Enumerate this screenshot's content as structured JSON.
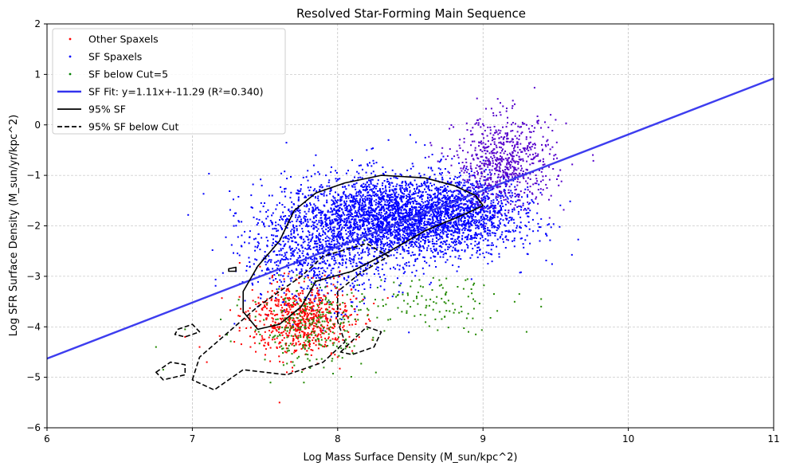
{
  "chart_data": {
    "type": "scatter",
    "title": "Resolved Star-Forming Main Sequence",
    "xlabel": "Log Mass Surface Density (M_sun/kpc^2)",
    "ylabel": "Log SFR Surface Density (M_sun/yr/kpc^2)",
    "xlim": [
      6,
      11
    ],
    "ylim": [
      -6,
      2
    ],
    "xticks": [
      6,
      7,
      8,
      9,
      10,
      11
    ],
    "yticks": [
      -6,
      -5,
      -4,
      -3,
      -2,
      -1,
      0,
      1,
      2
    ],
    "grid": true,
    "legend_position": "upper-left",
    "legend": [
      {
        "label": "Other Spaxels",
        "kind": "marker",
        "color": "#ff0000"
      },
      {
        "label": "SF Spaxels",
        "kind": "marker",
        "color": "#0000ff"
      },
      {
        "label": "SF below Cut=5",
        "kind": "marker",
        "color": "#008000"
      },
      {
        "label": "SF Fit: y=1.11x+-11.29 (R²=0.340)",
        "kind": "line",
        "color": "#3333ee"
      },
      {
        "label": "95% SF",
        "kind": "line",
        "color": "#000000"
      },
      {
        "label": "95% SF below Cut",
        "kind": "dashed",
        "color": "#000000"
      }
    ],
    "fit": {
      "slope": 1.11,
      "intercept": -11.29,
      "r2": 0.34,
      "color": "#3333ee"
    },
    "series": [
      {
        "name": "SF Spaxels",
        "color": "#0000ff",
        "clusters": [
          {
            "cx": 8.4,
            "cy": -1.85,
            "sx": 0.38,
            "sy": 0.42,
            "n": 3200
          },
          {
            "cx": 7.85,
            "cy": -2.6,
            "sx": 0.25,
            "sy": 0.5,
            "n": 700
          },
          {
            "cx": 8.9,
            "cy": -1.65,
            "sx": 0.2,
            "sy": 0.35,
            "n": 500
          }
        ],
        "points": [
          [
            7.55,
            -1.4
          ],
          [
            8.2,
            -0.5
          ],
          [
            8.35,
            -0.3
          ],
          [
            7.85,
            -0.6
          ],
          [
            8.5,
            -0.2
          ],
          [
            8.6,
            -0.4
          ],
          [
            7.5,
            -2.6
          ],
          [
            7.45,
            -3.6
          ],
          [
            7.3,
            -2.9
          ],
          [
            8.1,
            -0.7
          ]
        ]
      },
      {
        "name": "SF Spaxels (high density)",
        "color": "#5500cc",
        "clusters": [
          {
            "cx": 9.15,
            "cy": -0.75,
            "sx": 0.17,
            "sy": 0.45,
            "n": 700
          }
        ],
        "points": [
          [
            9.5,
            0.1
          ],
          [
            9.45,
            -0.05
          ],
          [
            9.05,
            -0.05
          ],
          [
            9.3,
            0.0
          ]
        ]
      },
      {
        "name": "Other Spaxels",
        "color": "#ff0000",
        "clusters": [
          {
            "cx": 7.75,
            "cy": -3.85,
            "sx": 0.18,
            "sy": 0.35,
            "n": 700
          }
        ],
        "points": [
          [
            7.1,
            -4.7
          ],
          [
            6.95,
            -4.2
          ],
          [
            7.05,
            -4.4
          ],
          [
            7.6,
            -5.5
          ],
          [
            7.65,
            -4.9
          ],
          [
            7.4,
            -4.4
          ],
          [
            8.0,
            -4.6
          ]
        ]
      },
      {
        "name": "SF below Cut=5",
        "color": "#228800",
        "clusters": [
          {
            "cx": 7.8,
            "cy": -4.0,
            "sx": 0.2,
            "sy": 0.4,
            "n": 260
          },
          {
            "cx": 8.6,
            "cy": -3.5,
            "sx": 0.25,
            "sy": 0.25,
            "n": 110
          }
        ],
        "points": [
          [
            6.8,
            -4.85
          ],
          [
            6.95,
            -4.05
          ],
          [
            8.85,
            -3.6
          ],
          [
            9.25,
            -3.35
          ],
          [
            9.3,
            -4.1
          ],
          [
            9.4,
            -3.45
          ],
          [
            9.4,
            -3.6
          ],
          [
            8.9,
            -4.1
          ],
          [
            8.95,
            -4.15
          ],
          [
            6.75,
            -4.4
          ]
        ]
      }
    ],
    "contours": [
      {
        "name": "95% SF",
        "style": "solid",
        "color": "#000000",
        "rings": [
          [
            [
              7.35,
              -3.3
            ],
            [
              7.45,
              -2.8
            ],
            [
              7.6,
              -2.3
            ],
            [
              7.7,
              -1.7
            ],
            [
              7.85,
              -1.35
            ],
            [
              8.05,
              -1.15
            ],
            [
              8.3,
              -1.0
            ],
            [
              8.6,
              -1.05
            ],
            [
              8.8,
              -1.2
            ],
            [
              8.95,
              -1.4
            ],
            [
              9.0,
              -1.6
            ],
            [
              8.85,
              -1.8
            ],
            [
              8.6,
              -2.1
            ],
            [
              8.3,
              -2.6
            ],
            [
              8.1,
              -2.9
            ],
            [
              7.85,
              -3.1
            ],
            [
              7.75,
              -3.6
            ],
            [
              7.6,
              -3.95
            ],
            [
              7.45,
              -4.05
            ],
            [
              7.35,
              -3.7
            ]
          ],
          [
            [
              7.25,
              -2.85
            ],
            [
              7.3,
              -2.82
            ],
            [
              7.3,
              -2.9
            ],
            [
              7.25,
              -2.9
            ]
          ]
        ]
      },
      {
        "name": "95% SF below Cut",
        "style": "dashed",
        "color": "#000000",
        "rings": [
          [
            [
              7.0,
              -5.05
            ],
            [
              7.05,
              -4.6
            ],
            [
              7.25,
              -4.1
            ],
            [
              7.45,
              -3.6
            ],
            [
              7.6,
              -3.3
            ],
            [
              7.75,
              -3.0
            ],
            [
              7.9,
              -2.6
            ],
            [
              8.2,
              -2.35
            ],
            [
              8.35,
              -2.6
            ],
            [
              8.15,
              -2.95
            ],
            [
              8.0,
              -3.3
            ],
            [
              8.0,
              -3.9
            ],
            [
              8.05,
              -4.3
            ],
            [
              7.9,
              -4.7
            ],
            [
              7.65,
              -4.95
            ],
            [
              7.35,
              -4.85
            ],
            [
              7.15,
              -5.25
            ]
          ],
          [
            [
              6.75,
              -4.9
            ],
            [
              6.85,
              -4.7
            ],
            [
              6.95,
              -4.75
            ],
            [
              6.95,
              -4.95
            ],
            [
              6.8,
              -5.05
            ]
          ],
          [
            [
              6.9,
              -4.05
            ],
            [
              7.0,
              -3.95
            ],
            [
              7.05,
              -4.1
            ],
            [
              6.95,
              -4.2
            ],
            [
              6.88,
              -4.15
            ]
          ],
          [
            [
              8.02,
              -4.5
            ],
            [
              8.2,
              -4.0
            ],
            [
              8.3,
              -4.1
            ],
            [
              8.25,
              -4.4
            ],
            [
              8.1,
              -4.55
            ]
          ]
        ]
      }
    ]
  }
}
